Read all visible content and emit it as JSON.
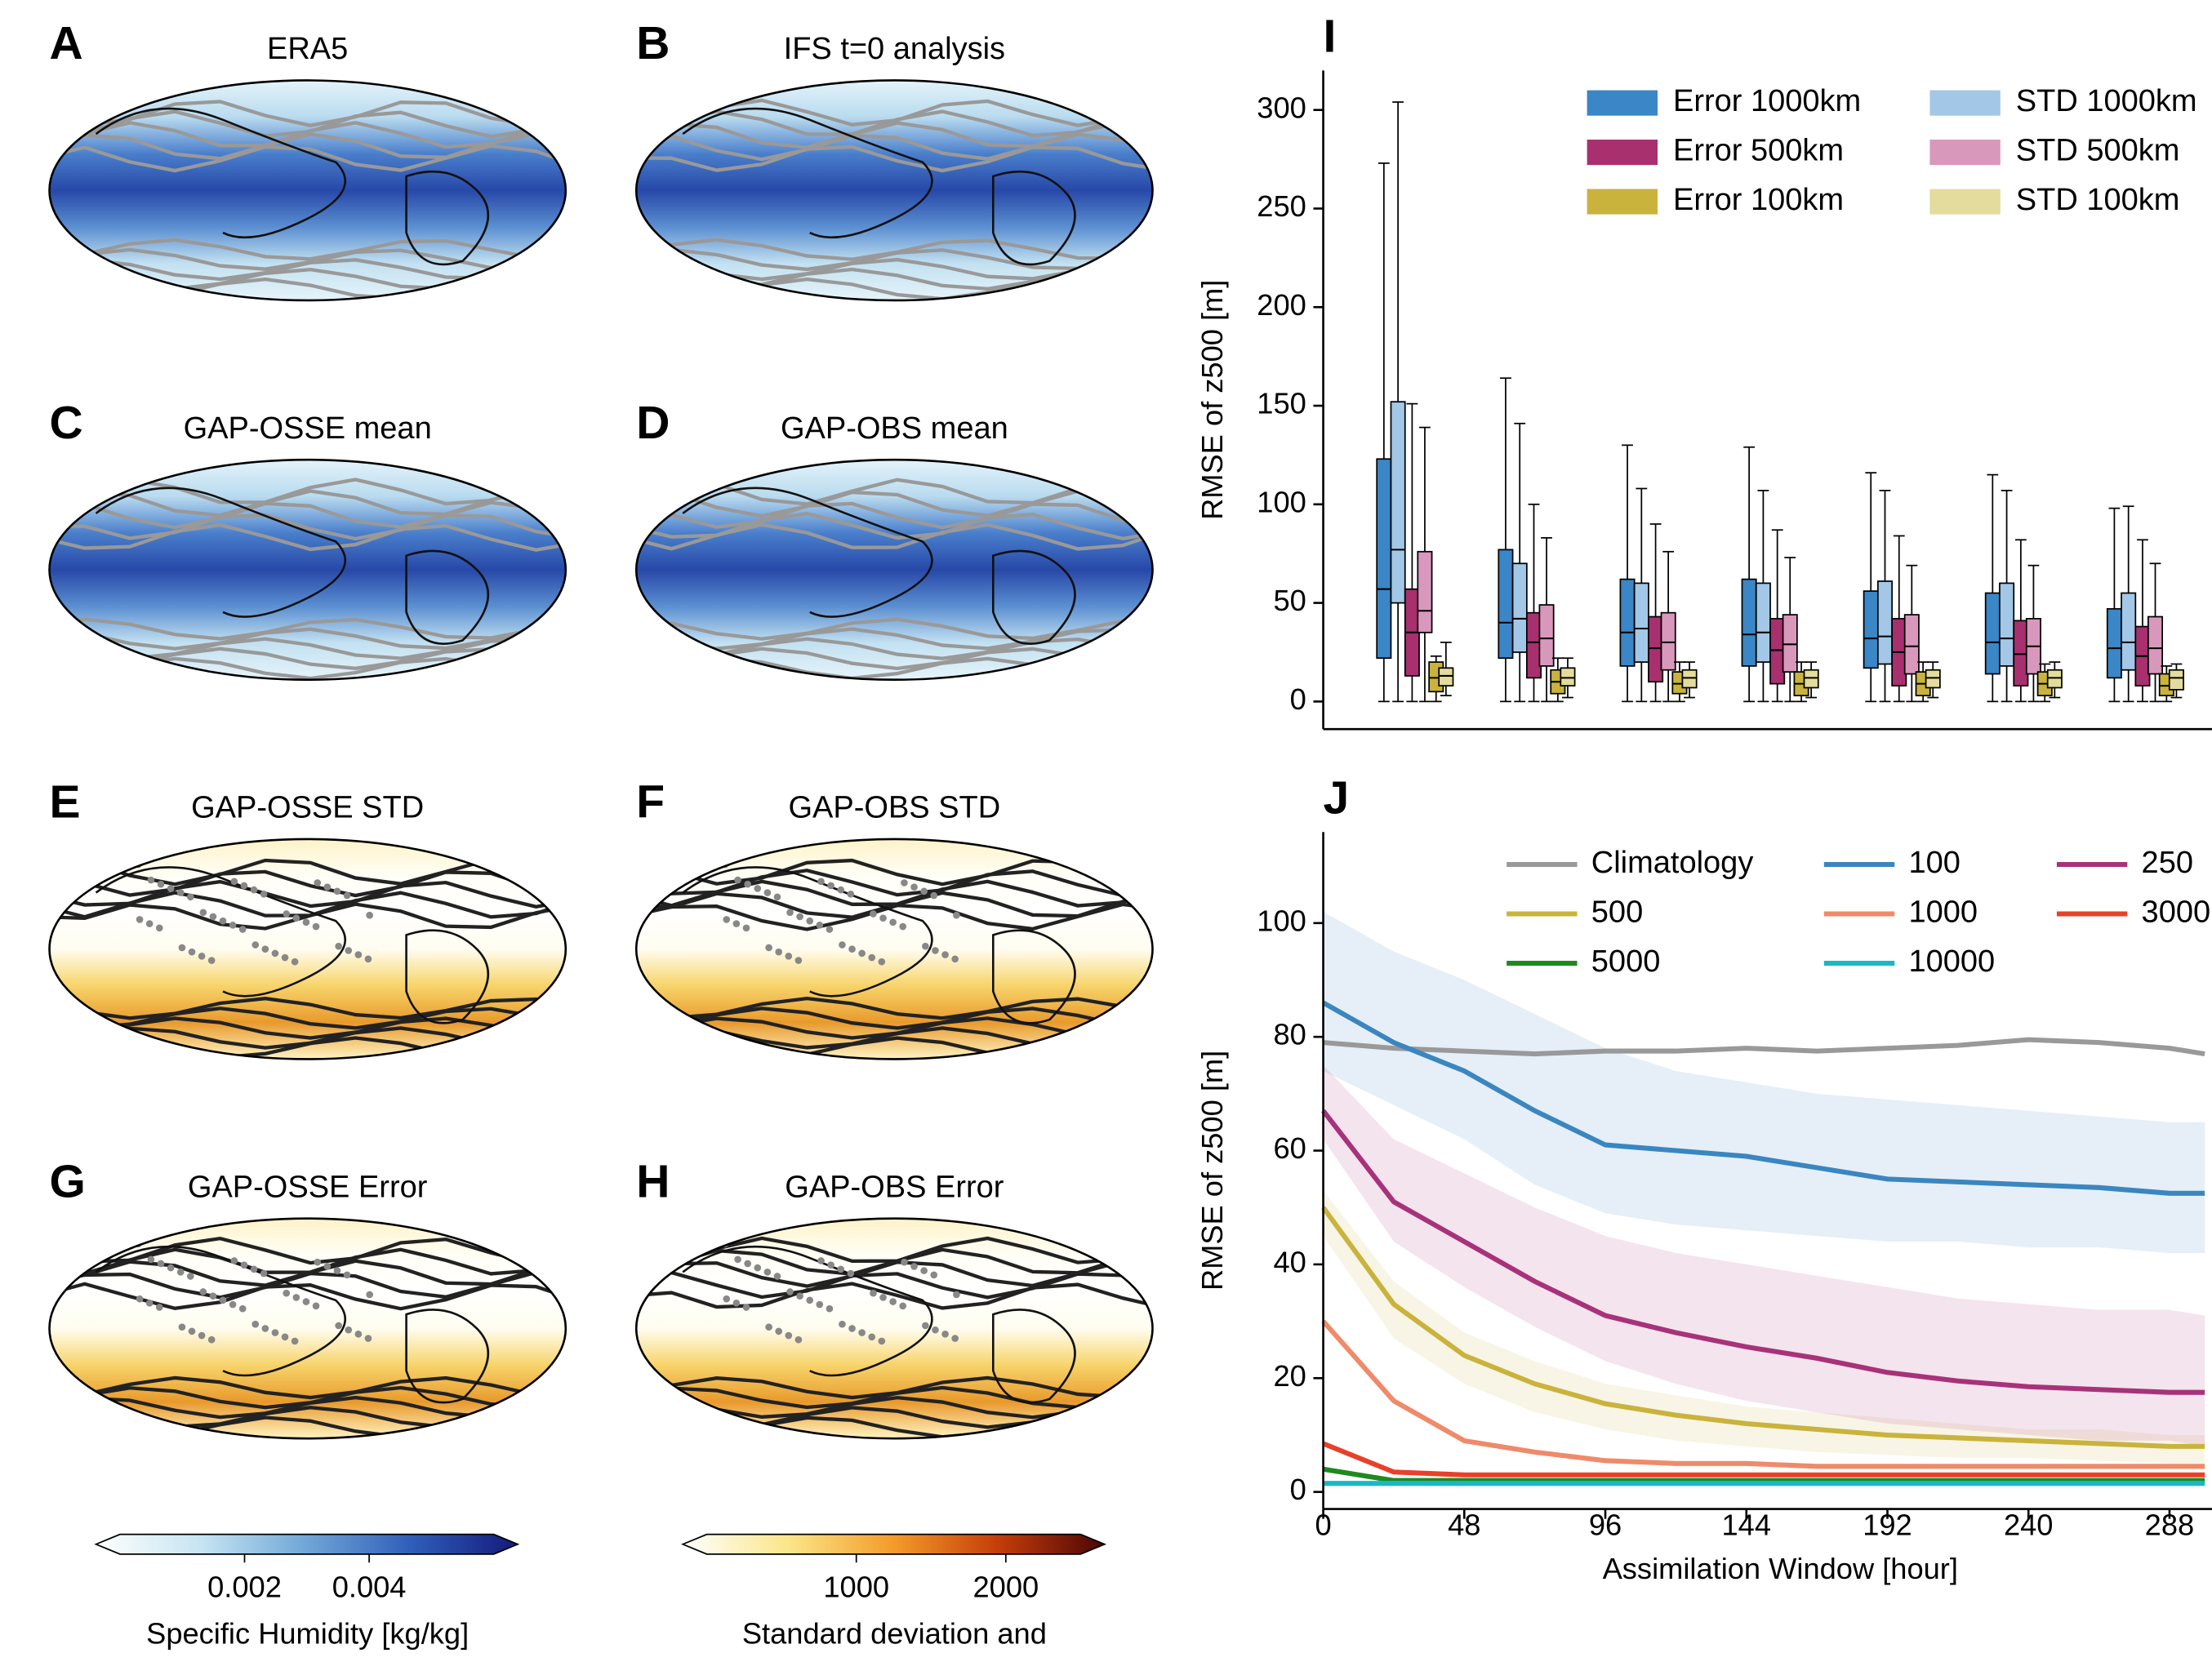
{
  "maps": {
    "panels": [
      {
        "letter": "A",
        "title": "ERA5"
      },
      {
        "letter": "B",
        "title": "IFS t=0 analysis"
      },
      {
        "letter": "C",
        "title": "GAP-OSSE mean"
      },
      {
        "letter": "D",
        "title": "GAP-OBS mean"
      },
      {
        "letter": "E",
        "title": "GAP-OSSE STD"
      },
      {
        "letter": "F",
        "title": "GAP-OBS STD"
      },
      {
        "letter": "G",
        "title": "GAP-OSSE Error"
      },
      {
        "letter": "H",
        "title": "GAP-OBS Error"
      }
    ],
    "colorbars": [
      {
        "label": "Specific Humidity [kg/kg]",
        "lim": [
          0,
          0.006
        ],
        "ticks": [
          0.002,
          0.004
        ],
        "colors": [
          "#ffffff",
          "#c6e4f2",
          "#6fa6d6",
          "#2f5db8",
          "#141a7a"
        ]
      },
      {
        "label": "Standard deviation and",
        "lim": [
          0,
          2500
        ],
        "ticks": [
          1000,
          2000
        ],
        "colors": [
          "#ffffff",
          "#fbe68a",
          "#f39b2a",
          "#c43c0a",
          "#4a0606"
        ]
      }
    ]
  },
  "chart_data": [
    {
      "type": "box",
      "letter": "I",
      "y_label": "RMSE of z500 [m]",
      "categories": [
        null,
        null,
        null,
        null,
        null,
        null,
        null
      ],
      "ylim": [
        -14,
        320
      ],
      "yticks": [
        0,
        50,
        100,
        150,
        200,
        250,
        300
      ],
      "series": [
        {
          "name": "Error 1000km",
          "color": "#3a86c6",
          "boxes": [
            {
              "low": 0,
              "q1": 22,
              "median": 57,
              "q3": 123,
              "high": 273
            },
            {
              "low": 0,
              "q1": 22,
              "median": 40,
              "q3": 77,
              "high": 164
            },
            {
              "low": 0,
              "q1": 18,
              "median": 35,
              "q3": 62,
              "high": 130
            },
            {
              "low": 0,
              "q1": 18,
              "median": 34,
              "q3": 62,
              "high": 129
            },
            {
              "low": 0,
              "q1": 17,
              "median": 32,
              "q3": 56,
              "high": 116
            },
            {
              "low": 0,
              "q1": 14,
              "median": 30,
              "q3": 55,
              "high": 115
            },
            {
              "low": 0,
              "q1": 12,
              "median": 27,
              "q3": 47,
              "high": 98
            }
          ]
        },
        {
          "name": "STD 1000km",
          "color": "#a3c7e6",
          "boxes": [
            {
              "low": 0,
              "q1": 50,
              "median": 77,
              "q3": 152,
              "high": 304
            },
            {
              "low": 0,
              "q1": 25,
              "median": 42,
              "q3": 70,
              "high": 141
            },
            {
              "low": 0,
              "q1": 20,
              "median": 37,
              "q3": 60,
              "high": 108
            },
            {
              "low": 0,
              "q1": 20,
              "median": 35,
              "q3": 60,
              "high": 107
            },
            {
              "low": 0,
              "q1": 19,
              "median": 33,
              "q3": 61,
              "high": 107
            },
            {
              "low": 0,
              "q1": 18,
              "median": 32,
              "q3": 60,
              "high": 107
            },
            {
              "low": 0,
              "q1": 16,
              "median": 30,
              "q3": 55,
              "high": 99
            }
          ]
        },
        {
          "name": "Error 500km",
          "color": "#a8306f",
          "boxes": [
            {
              "low": 0,
              "q1": 13,
              "median": 35,
              "q3": 57,
              "high": 151
            },
            {
              "low": 0,
              "q1": 12,
              "median": 30,
              "q3": 45,
              "high": 100
            },
            {
              "low": 0,
              "q1": 10,
              "median": 27,
              "q3": 43,
              "high": 90
            },
            {
              "low": 0,
              "q1": 9,
              "median": 26,
              "q3": 42,
              "high": 87
            },
            {
              "low": 0,
              "q1": 8,
              "median": 25,
              "q3": 42,
              "high": 84
            },
            {
              "low": 0,
              "q1": 8,
              "median": 24,
              "q3": 41,
              "high": 82
            },
            {
              "low": 0,
              "q1": 8,
              "median": 23,
              "q3": 38,
              "high": 82
            }
          ]
        },
        {
          "name": "STD 500km",
          "color": "#d898bb",
          "boxes": [
            {
              "low": 0,
              "q1": 35,
              "median": 46,
              "q3": 76,
              "high": 139
            },
            {
              "low": 0,
              "q1": 18,
              "median": 32,
              "q3": 49,
              "high": 83
            },
            {
              "low": 0,
              "q1": 16,
              "median": 30,
              "q3": 45,
              "high": 76
            },
            {
              "low": 0,
              "q1": 15,
              "median": 29,
              "q3": 44,
              "high": 73
            },
            {
              "low": 0,
              "q1": 14,
              "median": 28,
              "q3": 44,
              "high": 69
            },
            {
              "low": 0,
              "q1": 14,
              "median": 28,
              "q3": 42,
              "high": 69
            },
            {
              "low": 0,
              "q1": 14,
              "median": 27,
              "q3": 43,
              "high": 70
            }
          ]
        },
        {
          "name": "Error 100km",
          "color": "#c9b33c",
          "boxes": [
            {
              "low": 0,
              "q1": 5,
              "median": 12,
              "q3": 20,
              "high": 23
            },
            {
              "low": 0,
              "q1": 4,
              "median": 10,
              "q3": 16,
              "high": 22
            },
            {
              "low": 0,
              "q1": 4,
              "median": 9,
              "q3": 15,
              "high": 20
            },
            {
              "low": 0,
              "q1": 3,
              "median": 9,
              "q3": 15,
              "high": 20
            },
            {
              "low": 0,
              "q1": 3,
              "median": 9,
              "q3": 15,
              "high": 20
            },
            {
              "low": 0,
              "q1": 3,
              "median": 9,
              "q3": 15,
              "high": 19
            },
            {
              "low": 0,
              "q1": 3,
              "median": 8,
              "q3": 14,
              "high": 18
            }
          ]
        },
        {
          "name": "STD 100km",
          "color": "#e4dc9c",
          "boxes": [
            {
              "low": 3,
              "q1": 8,
              "median": 13,
              "q3": 17,
              "high": 30
            },
            {
              "low": 2,
              "q1": 8,
              "median": 12,
              "q3": 17,
              "high": 22
            },
            {
              "low": 2,
              "q1": 7,
              "median": 12,
              "q3": 16,
              "high": 20
            },
            {
              "low": 2,
              "q1": 7,
              "median": 12,
              "q3": 16,
              "high": 20
            },
            {
              "low": 2,
              "q1": 7,
              "median": 12,
              "q3": 16,
              "high": 20
            },
            {
              "low": 2,
              "q1": 7,
              "median": 12,
              "q3": 16,
              "high": 20
            },
            {
              "low": 2,
              "q1": 6,
              "median": 12,
              "q3": 16,
              "high": 19
            }
          ]
        }
      ]
    },
    {
      "type": "line",
      "letter": "J",
      "x_label": "Assimilation Window [hour]",
      "y_label": "RMSE of z500 [m]",
      "x": [
        0,
        24,
        48,
        72,
        96,
        120,
        144,
        168,
        192,
        216,
        240,
        264,
        288,
        300
      ],
      "xlim": [
        0,
        310
      ],
      "xticks": [
        0,
        48,
        96,
        144,
        192,
        240,
        288
      ],
      "ylim": [
        -3,
        116
      ],
      "yticks": [
        0,
        20,
        40,
        60,
        80,
        100
      ],
      "series": [
        {
          "name": "Climatology",
          "color": "#999999",
          "values": [
            79,
            78,
            77.5,
            77,
            77.5,
            77.5,
            78,
            77.5,
            78,
            78.5,
            79.5,
            79,
            78,
            77
          ]
        },
        {
          "name": "500",
          "color": "#c9b33c",
          "values": [
            50,
            33,
            24,
            19,
            15.5,
            13.5,
            12,
            11,
            10,
            9.5,
            9,
            8.5,
            8,
            8
          ],
          "lower": [
            45,
            27,
            19,
            14,
            11,
            9,
            8,
            7,
            6.5,
            6,
            6,
            5.5,
            5,
            5
          ],
          "upper": [
            53,
            37,
            28,
            23,
            19,
            17,
            15,
            14,
            13,
            12,
            11,
            11,
            10,
            10
          ]
        },
        {
          "name": "5000",
          "color": "#1e8a1e",
          "values": [
            4,
            2,
            2,
            2,
            2,
            2,
            2,
            2,
            2,
            2,
            2,
            2,
            2,
            2
          ]
        },
        {
          "name": "100",
          "color": "#3a86c0",
          "values": [
            86,
            79,
            74,
            67,
            61,
            60,
            59,
            57,
            55,
            54.5,
            54,
            53.5,
            52.5,
            52.5
          ],
          "lower": [
            74,
            68,
            62,
            54,
            49,
            47,
            46,
            45,
            44,
            44,
            43,
            43,
            42,
            42
          ],
          "upper": [
            102,
            95,
            90,
            84,
            78,
            74,
            72,
            70,
            69,
            68,
            67,
            66,
            65,
            65
          ]
        },
        {
          "name": "1000",
          "color": "#ef8a6a",
          "values": [
            30,
            16,
            9,
            7,
            5.5,
            5,
            5,
            4.5,
            4.5,
            4.5,
            4.5,
            4.5,
            4.5,
            4.5
          ]
        },
        {
          "name": "10000",
          "color": "#1ab8c6",
          "values": [
            1.5,
            1.5,
            1.5,
            1.5,
            1.5,
            1.5,
            1.5,
            1.5,
            1.5,
            1.5,
            1.5,
            1.5,
            1.5,
            1.5
          ]
        },
        {
          "name": "250",
          "color": "#a83279",
          "values": [
            67,
            51,
            44,
            37,
            31,
            28,
            25.5,
            23.5,
            21,
            19.5,
            18.5,
            18,
            17.5,
            17.5
          ],
          "lower": [
            62,
            44,
            36,
            29,
            23,
            19,
            16,
            14,
            12,
            11,
            10,
            9,
            9,
            8
          ],
          "upper": [
            75,
            62,
            56,
            50,
            45,
            42,
            40,
            38,
            36,
            34,
            33,
            32,
            32,
            31
          ]
        },
        {
          "name": "3000",
          "color": "#e8402b",
          "values": [
            8.5,
            3.5,
            3,
            3,
            3,
            3,
            3,
            3,
            3,
            3,
            3,
            3,
            3,
            3
          ]
        }
      ]
    }
  ]
}
